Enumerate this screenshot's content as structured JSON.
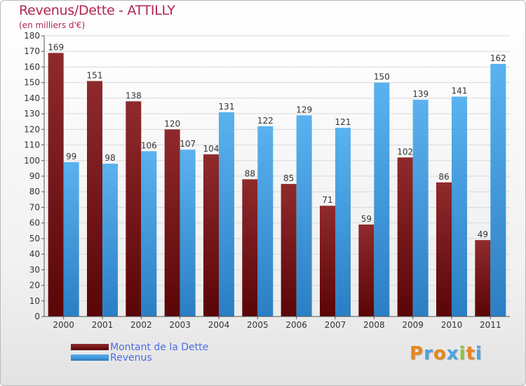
{
  "chart_data": {
    "type": "bar",
    "title": "Revenus/Dette - ATTILLY",
    "subtitle": "(en milliers d'€)",
    "categories": [
      "2000",
      "2001",
      "2002",
      "2003",
      "2004",
      "2005",
      "2006",
      "2007",
      "2008",
      "2009",
      "2010",
      "2011"
    ],
    "series": [
      {
        "name": "Montant de la Dette",
        "color": "#7a0f12",
        "values": [
          169,
          151,
          138,
          120,
          104,
          88,
          85,
          71,
          59,
          102,
          86,
          49
        ]
      },
      {
        "name": "Revenus",
        "color": "#3a97e0",
        "values": [
          99,
          98,
          106,
          107,
          131,
          122,
          129,
          121,
          150,
          139,
          141,
          162
        ]
      }
    ],
    "ylim": [
      0,
      180
    ],
    "ytick_step": 10,
    "grid": true,
    "legend_position": "bottom-left"
  },
  "logo": {
    "letters": [
      "P",
      "r",
      "o",
      "x",
      "i",
      "t",
      "i"
    ],
    "colors": [
      "#e8861a",
      "#4aa3df",
      "#e8861a",
      "#4aa3df",
      "#8bc34a",
      "#e8861a",
      "#4aa3df"
    ]
  }
}
